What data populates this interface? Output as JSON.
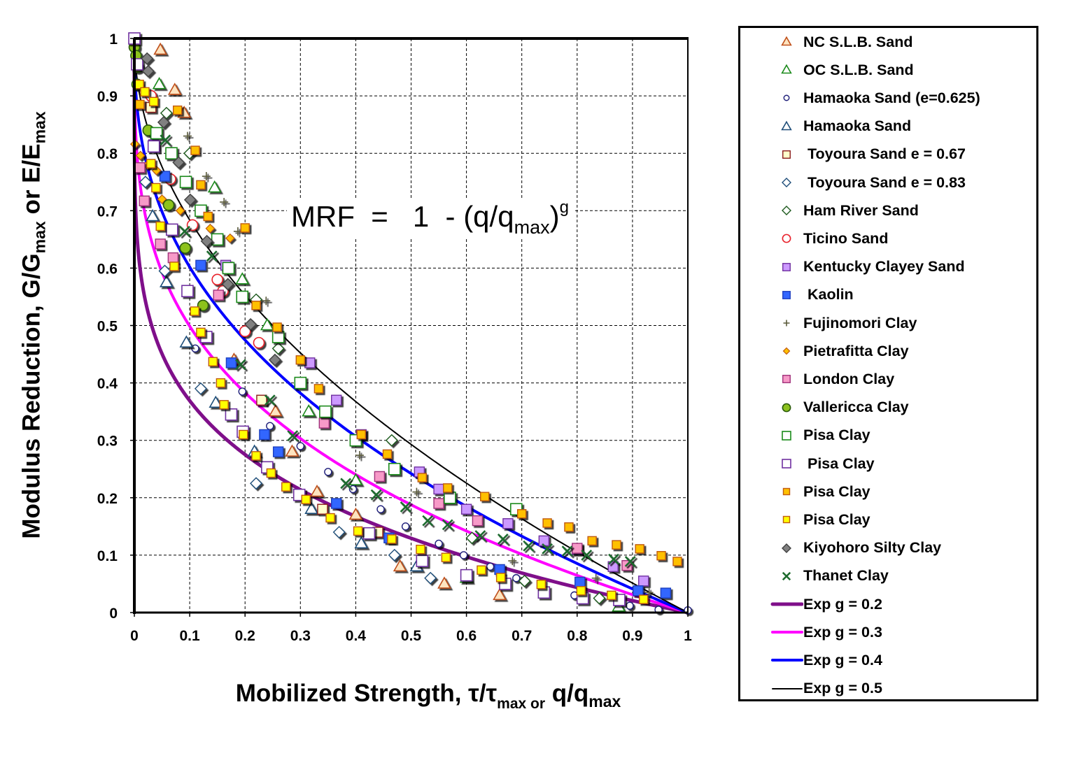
{
  "chart_data": {
    "type": "scatter",
    "xlabel_parts": {
      "main": "Mobilized Strength, τ/τ",
      "sub1": "max or",
      "mid": " q/q",
      "sub2": "max"
    },
    "ylabel_parts": {
      "main": "Modulus Reduction,  G/G",
      "sub1": "max",
      "mid": " or E/E",
      "sub2": "max"
    },
    "annotation": {
      "pre": "MRF  =   1  - (q/q",
      "sub": "max",
      "post": ")",
      "sup": "g"
    },
    "xlim": [
      0,
      1
    ],
    "ylim": [
      0,
      1
    ],
    "xticks": [
      "0",
      "0.1",
      "0.2",
      "0.3",
      "0.4",
      "0.5",
      "0.6",
      "0.7",
      "0.8",
      "0.9",
      "1"
    ],
    "yticks": [
      "0",
      "0.1",
      "0.2",
      "0.3",
      "0.4",
      "0.5",
      "0.6",
      "0.7",
      "0.8",
      "0.9",
      "1"
    ],
    "grid": true,
    "legend_position": "right-outside",
    "series": [
      {
        "name": "NC S.L.B. Sand",
        "marker": "triangle",
        "fill": "#fde4c0",
        "stroke": "#c0501a",
        "points": [
          [
            0.047,
            0.98
          ],
          [
            0.073,
            0.91
          ],
          [
            0.09,
            0.87
          ],
          [
            0.18,
            0.44
          ],
          [
            0.255,
            0.35
          ],
          [
            0.285,
            0.28
          ],
          [
            0.33,
            0.21
          ],
          [
            0.4,
            0.17
          ],
          [
            0.48,
            0.08
          ],
          [
            0.56,
            0.05
          ],
          [
            0.66,
            0.03
          ]
        ]
      },
      {
        "name": "OC S.L.B. Sand",
        "marker": "triangle",
        "fill": "#ffffff",
        "stroke": "#1a8a1a",
        "points": [
          [
            0.045,
            0.92
          ],
          [
            0.145,
            0.74
          ],
          [
            0.195,
            0.58
          ],
          [
            0.24,
            0.5
          ],
          [
            0.315,
            0.35
          ],
          [
            0.4,
            0.23
          ],
          [
            0.6,
            0.06
          ],
          [
            0.875,
            0.01
          ]
        ]
      },
      {
        "name": "Hamaoka Sand (e=0.625)",
        "marker": "circle-small",
        "fill": "#ffffff",
        "stroke": "#1f1f7a",
        "points": [
          [
            0.11,
            0.46
          ],
          [
            0.195,
            0.385
          ],
          [
            0.245,
            0.325
          ],
          [
            0.3,
            0.29
          ],
          [
            0.35,
            0.245
          ],
          [
            0.395,
            0.215
          ],
          [
            0.445,
            0.18
          ],
          [
            0.49,
            0.15
          ],
          [
            0.55,
            0.12
          ],
          [
            0.595,
            0.1
          ],
          [
            0.643,
            0.08
          ],
          [
            0.69,
            0.06
          ],
          [
            0.795,
            0.03
          ],
          [
            0.895,
            0.012
          ],
          [
            0.947,
            0.005
          ],
          [
            1.0,
            0.004
          ]
        ]
      },
      {
        "name": "Hamaoka Sand",
        "marker": "triangle",
        "fill": "#ffffff",
        "stroke": "#1f4e79",
        "points": [
          [
            0.033,
            0.69
          ],
          [
            0.058,
            0.575
          ],
          [
            0.094,
            0.47
          ],
          [
            0.147,
            0.365
          ],
          [
            0.217,
            0.28
          ],
          [
            0.32,
            0.18
          ],
          [
            0.41,
            0.12
          ],
          [
            0.51,
            0.08
          ]
        ]
      },
      {
        "name": " Toyoura Sand e = 0.67",
        "marker": "square",
        "fill": "#ffffcc",
        "stroke": "#8b1a1a",
        "points": [
          [
            0.03,
            0.88
          ],
          [
            0.23,
            0.37
          ],
          [
            0.34,
            0.18
          ],
          [
            0.44,
            0.14
          ]
        ]
      },
      {
        "name": " Toyoura Sand e = 0.83",
        "marker": "diamond",
        "fill": "#ffffff",
        "stroke": "#1f4e79",
        "points": [
          [
            0.02,
            0.75
          ],
          [
            0.055,
            0.595
          ],
          [
            0.12,
            0.39
          ],
          [
            0.22,
            0.225
          ],
          [
            0.37,
            0.14
          ],
          [
            0.47,
            0.1
          ],
          [
            0.535,
            0.06
          ]
        ]
      },
      {
        "name": "Ham River Sand",
        "marker": "diamond",
        "fill": "#ffffff",
        "stroke": "#1e5a1e",
        "points": [
          [
            0.058,
            0.87
          ],
          [
            0.1,
            0.8
          ],
          [
            0.22,
            0.545
          ],
          [
            0.26,
            0.46
          ],
          [
            0.465,
            0.3
          ],
          [
            0.61,
            0.13
          ],
          [
            0.705,
            0.055
          ],
          [
            0.84,
            0.025
          ]
        ]
      },
      {
        "name": "Ticino Sand",
        "marker": "circle",
        "fill": "#ffffff",
        "stroke": "#e8202a",
        "points": [
          [
            0.03,
            0.9
          ],
          [
            0.065,
            0.755
          ],
          [
            0.105,
            0.675
          ],
          [
            0.15,
            0.58
          ],
          [
            0.16,
            0.56
          ],
          [
            0.2,
            0.49
          ],
          [
            0.225,
            0.47
          ]
        ]
      },
      {
        "name": "Kentucky Clayey Sand",
        "marker": "square",
        "fill": "#cc99ff",
        "stroke": "#7030a0",
        "points": [
          [
            0.035,
            0.815
          ],
          [
            0.165,
            0.605
          ],
          [
            0.317,
            0.435
          ],
          [
            0.365,
            0.37
          ],
          [
            0.41,
            0.31
          ],
          [
            0.515,
            0.245
          ],
          [
            0.55,
            0.215
          ],
          [
            0.6,
            0.18
          ],
          [
            0.675,
            0.155
          ],
          [
            0.74,
            0.125
          ],
          [
            0.8,
            0.11
          ],
          [
            0.865,
            0.08
          ],
          [
            0.92,
            0.055
          ]
        ]
      },
      {
        "name": " Kaolin",
        "marker": "square",
        "fill": "#3366ff",
        "stroke": "#1f3fbf",
        "points": [
          [
            0.055,
            0.76
          ],
          [
            0.12,
            0.605
          ],
          [
            0.175,
            0.435
          ],
          [
            0.235,
            0.31
          ],
          [
            0.26,
            0.28
          ],
          [
            0.365,
            0.19
          ],
          [
            0.46,
            0.13
          ],
          [
            0.66,
            0.075
          ],
          [
            0.805,
            0.053
          ],
          [
            0.91,
            0.038
          ],
          [
            0.96,
            0.034
          ]
        ]
      },
      {
        "name": "Fujinomori Clay",
        "marker": "plus",
        "fill": "#5a5a3a",
        "stroke": "#5a5a3a",
        "points": [
          [
            0.096,
            0.83
          ],
          [
            0.13,
            0.76
          ],
          [
            0.162,
            0.715
          ],
          [
            0.187,
            0.664
          ],
          [
            0.238,
            0.543
          ],
          [
            0.407,
            0.274
          ],
          [
            0.51,
            0.21
          ],
          [
            0.683,
            0.09
          ],
          [
            0.834,
            0.06
          ],
          [
            0.93,
            0.035
          ]
        ]
      },
      {
        "name": "Pietrafitta Clay",
        "marker": "diamond-small",
        "fill": "#ffc000",
        "stroke": "#c05a11",
        "points": [
          [
            0.001,
            0.816
          ],
          [
            0.011,
            0.796
          ],
          [
            0.024,
            0.78
          ],
          [
            0.04,
            0.77
          ],
          [
            0.05,
            0.72
          ],
          [
            0.083,
            0.7
          ],
          [
            0.137,
            0.669
          ],
          [
            0.173,
            0.652
          ]
        ]
      },
      {
        "name": "London Clay",
        "marker": "square",
        "fill": "#f79ac8",
        "stroke": "#a0307a",
        "points": [
          [
            0.01,
            0.775
          ],
          [
            0.018,
            0.717
          ],
          [
            0.047,
            0.642
          ],
          [
            0.07,
            0.618
          ],
          [
            0.152,
            0.553
          ],
          [
            0.343,
            0.33
          ],
          [
            0.443,
            0.237
          ],
          [
            0.55,
            0.19
          ],
          [
            0.62,
            0.16
          ],
          [
            0.8,
            0.112
          ],
          [
            0.89,
            0.082
          ]
        ]
      },
      {
        "name": "Vallericca Clay",
        "marker": "circle",
        "fill": "#8dc21f",
        "stroke": "#2a5a0a",
        "points": [
          [
            0.0,
            0.985
          ],
          [
            0.003,
            0.97
          ],
          [
            0.006,
            0.95
          ],
          [
            0.005,
            0.92
          ],
          [
            0.025,
            0.84
          ],
          [
            0.062,
            0.71
          ],
          [
            0.092,
            0.635
          ],
          [
            0.124,
            0.535
          ]
        ]
      },
      {
        "name": "Pisa Clay",
        "marker": "square-open",
        "fill": "#ffffff",
        "stroke": "#1a8a1a",
        "points": [
          [
            0.04,
            0.835
          ],
          [
            0.067,
            0.8
          ],
          [
            0.093,
            0.75
          ],
          [
            0.12,
            0.7
          ],
          [
            0.15,
            0.65
          ],
          [
            0.17,
            0.6
          ],
          [
            0.195,
            0.55
          ],
          [
            0.26,
            0.48
          ],
          [
            0.3,
            0.4
          ],
          [
            0.345,
            0.35
          ],
          [
            0.4,
            0.3
          ],
          [
            0.47,
            0.25
          ],
          [
            0.57,
            0.2
          ],
          [
            0.69,
            0.18
          ]
        ]
      },
      {
        "name": " Pisa Clay",
        "marker": "square-open",
        "fill": "#ffffff",
        "stroke": "#7030a0",
        "points": [
          [
            0.0,
            1.0
          ],
          [
            0.005,
            0.955
          ],
          [
            0.035,
            0.812
          ],
          [
            0.068,
            0.667
          ],
          [
            0.096,
            0.56
          ],
          [
            0.13,
            0.48
          ],
          [
            0.175,
            0.345
          ],
          [
            0.196,
            0.315
          ],
          [
            0.24,
            0.253
          ],
          [
            0.298,
            0.205
          ],
          [
            0.424,
            0.138
          ],
          [
            0.52,
            0.09
          ],
          [
            0.6,
            0.065
          ],
          [
            0.67,
            0.05
          ],
          [
            0.74,
            0.035
          ],
          [
            0.81,
            0.025
          ],
          [
            0.876,
            0.022
          ]
        ]
      },
      {
        "name": "Pisa Clay",
        "marker": "square-small",
        "fill": "#ffc000",
        "stroke": "#c05a11",
        "points": [
          [
            0.01,
            0.885
          ],
          [
            0.078,
            0.875
          ],
          [
            0.11,
            0.805
          ],
          [
            0.12,
            0.745
          ],
          [
            0.133,
            0.69
          ],
          [
            0.2,
            0.67
          ],
          [
            0.22,
            0.535
          ],
          [
            0.258,
            0.497
          ],
          [
            0.3,
            0.44
          ],
          [
            0.333,
            0.39
          ],
          [
            0.41,
            0.31
          ],
          [
            0.457,
            0.276
          ],
          [
            0.52,
            0.235
          ],
          [
            0.566,
            0.217
          ],
          [
            0.633,
            0.202
          ],
          [
            0.7,
            0.172
          ],
          [
            0.746,
            0.156
          ],
          [
            0.785,
            0.149
          ],
          [
            0.827,
            0.125
          ],
          [
            0.871,
            0.118
          ],
          [
            0.913,
            0.111
          ],
          [
            0.952,
            0.099
          ],
          [
            0.981,
            0.089
          ]
        ]
      },
      {
        "name": "Pisa Clay",
        "marker": "square-small",
        "fill": "#ffff00",
        "stroke": "#c05a11",
        "points": [
          [
            0.009,
            0.92
          ],
          [
            0.019,
            0.907
          ],
          [
            0.035,
            0.89
          ],
          [
            0.03,
            0.782
          ],
          [
            0.039,
            0.74
          ],
          [
            0.047,
            0.673
          ],
          [
            0.072,
            0.603
          ],
          [
            0.109,
            0.525
          ],
          [
            0.12,
            0.488
          ],
          [
            0.142,
            0.437
          ],
          [
            0.156,
            0.4
          ],
          [
            0.162,
            0.362
          ],
          [
            0.197,
            0.31
          ],
          [
            0.22,
            0.273
          ],
          [
            0.247,
            0.243
          ],
          [
            0.274,
            0.219
          ],
          [
            0.31,
            0.197
          ],
          [
            0.354,
            0.165
          ],
          [
            0.404,
            0.142
          ],
          [
            0.465,
            0.128
          ],
          [
            0.517,
            0.11
          ],
          [
            0.563,
            0.096
          ],
          [
            0.627,
            0.074
          ],
          [
            0.662,
            0.061
          ],
          [
            0.735,
            0.049
          ],
          [
            0.807,
            0.038
          ],
          [
            0.862,
            0.03
          ],
          [
            0.92,
            0.023
          ]
        ]
      },
      {
        "name": "Kiyohoro Silty Clay",
        "marker": "diamond",
        "fill": "#808080",
        "stroke": "#404040",
        "points": [
          [
            0.023,
            0.965
          ],
          [
            0.025,
            0.943
          ],
          [
            0.053,
            0.854
          ],
          [
            0.08,
            0.784
          ],
          [
            0.101,
            0.719
          ],
          [
            0.131,
            0.647
          ],
          [
            0.169,
            0.572
          ],
          [
            0.21,
            0.502
          ],
          [
            0.254,
            0.44
          ]
        ]
      },
      {
        "name": "Thanet Clay",
        "marker": "x",
        "fill": "#1e6b2e",
        "stroke": "#1e6b2e",
        "points": [
          [
            0.056,
            0.823
          ],
          [
            0.091,
            0.664
          ],
          [
            0.14,
            0.621
          ],
          [
            0.192,
            0.432
          ],
          [
            0.245,
            0.37
          ],
          [
            0.286,
            0.308
          ],
          [
            0.382,
            0.225
          ],
          [
            0.437,
            0.205
          ],
          [
            0.49,
            0.184
          ],
          [
            0.53,
            0.16
          ],
          [
            0.566,
            0.153
          ],
          [
            0.625,
            0.134
          ],
          [
            0.666,
            0.128
          ],
          [
            0.712,
            0.116
          ],
          [
            0.746,
            0.111
          ],
          [
            0.782,
            0.107
          ],
          [
            0.817,
            0.1
          ],
          [
            0.866,
            0.093
          ],
          [
            0.896,
            0.089
          ]
        ]
      }
    ],
    "curves": [
      {
        "name": "Exp g = 0.2",
        "g": 0.2,
        "color": "#7f0f8a",
        "style": "thick"
      },
      {
        "name": "Exp g = 0.3",
        "g": 0.3,
        "color": "#ff00ff",
        "style": "medium"
      },
      {
        "name": "Exp g = 0.4",
        "g": 0.4,
        "color": "#0000ff",
        "style": "medium"
      },
      {
        "name": "Exp g = 0.5",
        "g": 0.5,
        "color": "#000000",
        "style": "thin"
      }
    ]
  }
}
